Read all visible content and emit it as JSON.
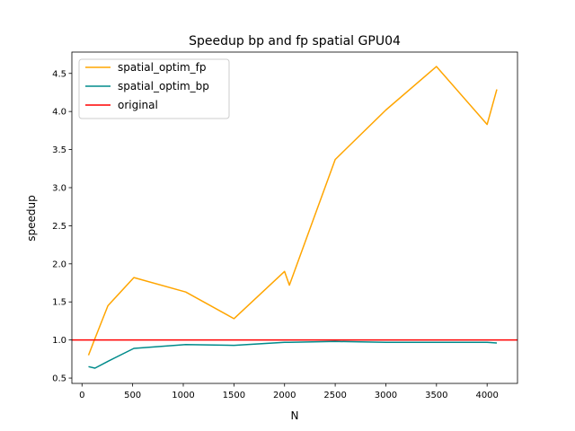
{
  "chart_data": {
    "type": "line",
    "title": "Speedup bp and fp spatial GPU04",
    "xlabel": "N",
    "ylabel": "speedup",
    "xlim": [
      -100,
      4300
    ],
    "ylim": [
      0.43,
      4.78
    ],
    "xticks": [
      0,
      500,
      1000,
      1500,
      2000,
      2500,
      3000,
      3500,
      4000
    ],
    "xtick_labels": [
      "0",
      "500",
      "1000",
      "1500",
      "2000",
      "2500",
      "3000",
      "3500",
      "4000"
    ],
    "yticks": [
      0.5,
      1.0,
      1.5,
      2.0,
      2.5,
      3.0,
      3.5,
      4.0,
      4.5
    ],
    "ytick_labels": [
      "0.5",
      "1.0",
      "1.5",
      "2.0",
      "2.5",
      "3.0",
      "3.5",
      "4.0",
      "4.5"
    ],
    "grid": false,
    "legend_position": "upper-left",
    "series": [
      {
        "name": "spatial_optim_fp",
        "color": "#ffa500",
        "x": [
          64,
          128,
          256,
          512,
          1024,
          1500,
          2000,
          2048,
          2500,
          3000,
          3500,
          4000,
          4096
        ],
        "y": [
          0.8,
          1.02,
          1.45,
          1.82,
          1.63,
          1.28,
          1.9,
          1.72,
          3.37,
          4.02,
          4.59,
          3.83,
          4.29
        ]
      },
      {
        "name": "spatial_optim_bp",
        "color": "#008b8b",
        "x": [
          64,
          128,
          256,
          512,
          1024,
          1500,
          2000,
          2048,
          2500,
          3000,
          3500,
          4000,
          4096
        ],
        "y": [
          0.65,
          0.63,
          0.72,
          0.89,
          0.94,
          0.93,
          0.97,
          0.97,
          0.98,
          0.97,
          0.97,
          0.97,
          0.96
        ]
      },
      {
        "name": "original",
        "color": "#ff0000",
        "hline": 1.0
      }
    ]
  }
}
